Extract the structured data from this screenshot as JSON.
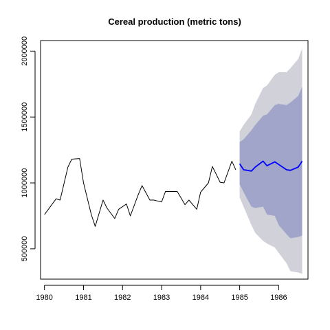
{
  "chart_data": {
    "type": "line",
    "title": "Cereal production (metric tons)",
    "xlabel": "",
    "ylabel": "",
    "xlim": [
      1979.9,
      1986.75
    ],
    "ylim": [
      270000,
      2080000
    ],
    "grid": false,
    "x_ticks": [
      1980,
      1981,
      1982,
      1983,
      1984,
      1985,
      1986
    ],
    "x_tick_labels": [
      "1980",
      "1981",
      "1982",
      "1983",
      "1984",
      "1985",
      "1986"
    ],
    "y_ticks": [
      500000,
      1000000,
      1500000,
      2000000
    ],
    "y_tick_labels": [
      "500000",
      "1000000",
      "1500000",
      "2000000"
    ],
    "series": [
      {
        "role": "history",
        "color": "#000000",
        "x": [
          1980.0,
          1980.1,
          1980.3,
          1980.4,
          1980.6,
          1980.7,
          1980.9,
          1981.0,
          1981.2,
          1981.3,
          1981.5,
          1981.6,
          1981.8,
          1981.9,
          1982.1,
          1982.2,
          1982.4,
          1982.5,
          1982.7,
          1982.8,
          1983.0,
          1983.1,
          1983.3,
          1983.4,
          1983.6,
          1983.7,
          1983.9,
          1984.0,
          1984.2,
          1984.3,
          1984.5,
          1984.6,
          1984.8,
          1984.9
        ],
        "y": [
          760000,
          800000,
          880000,
          870000,
          1120000,
          1180000,
          1185000,
          1000000,
          760000,
          670000,
          870000,
          810000,
          730000,
          800000,
          840000,
          750000,
          910000,
          980000,
          870000,
          870000,
          855000,
          935000,
          935000,
          935000,
          835000,
          870000,
          800000,
          930000,
          1000000,
          1125000,
          1005000,
          1000000,
          1165000,
          1100000
        ]
      },
      {
        "role": "forecast",
        "color": "#0000ff",
        "x": [
          1985.0,
          1985.1,
          1985.3,
          1985.4,
          1985.6,
          1985.7,
          1985.9,
          1986.0,
          1986.2,
          1986.3,
          1986.5,
          1986.6
        ],
        "y": [
          1145000,
          1100000,
          1090000,
          1120000,
          1165000,
          1130000,
          1160000,
          1140000,
          1100000,
          1095000,
          1120000,
          1165000
        ]
      }
    ],
    "bands": [
      {
        "role": "outer-interval",
        "color": "#d1d1d9",
        "x": [
          1985.0,
          1985.1,
          1985.3,
          1985.4,
          1985.6,
          1985.7,
          1985.9,
          1986.0,
          1986.2,
          1986.3,
          1986.5,
          1986.6
        ],
        "lower": [
          890000,
          820000,
          680000,
          620000,
          560000,
          540000,
          510000,
          470000,
          390000,
          330000,
          320000,
          310000
        ],
        "upper": [
          1390000,
          1440000,
          1520000,
          1600000,
          1720000,
          1740000,
          1820000,
          1840000,
          1840000,
          1870000,
          1940000,
          2020000
        ]
      },
      {
        "role": "inner-interval",
        "color": "#a1a5c9",
        "x": [
          1985.0,
          1985.1,
          1985.3,
          1985.4,
          1985.6,
          1985.7,
          1985.9,
          1986.0,
          1986.2,
          1986.3,
          1986.5,
          1986.6
        ],
        "lower": [
          990000,
          930000,
          820000,
          810000,
          820000,
          760000,
          750000,
          680000,
          610000,
          580000,
          590000,
          600000
        ],
        "upper": [
          1310000,
          1330000,
          1400000,
          1440000,
          1510000,
          1520000,
          1590000,
          1600000,
          1590000,
          1610000,
          1660000,
          1730000
        ]
      }
    ]
  }
}
